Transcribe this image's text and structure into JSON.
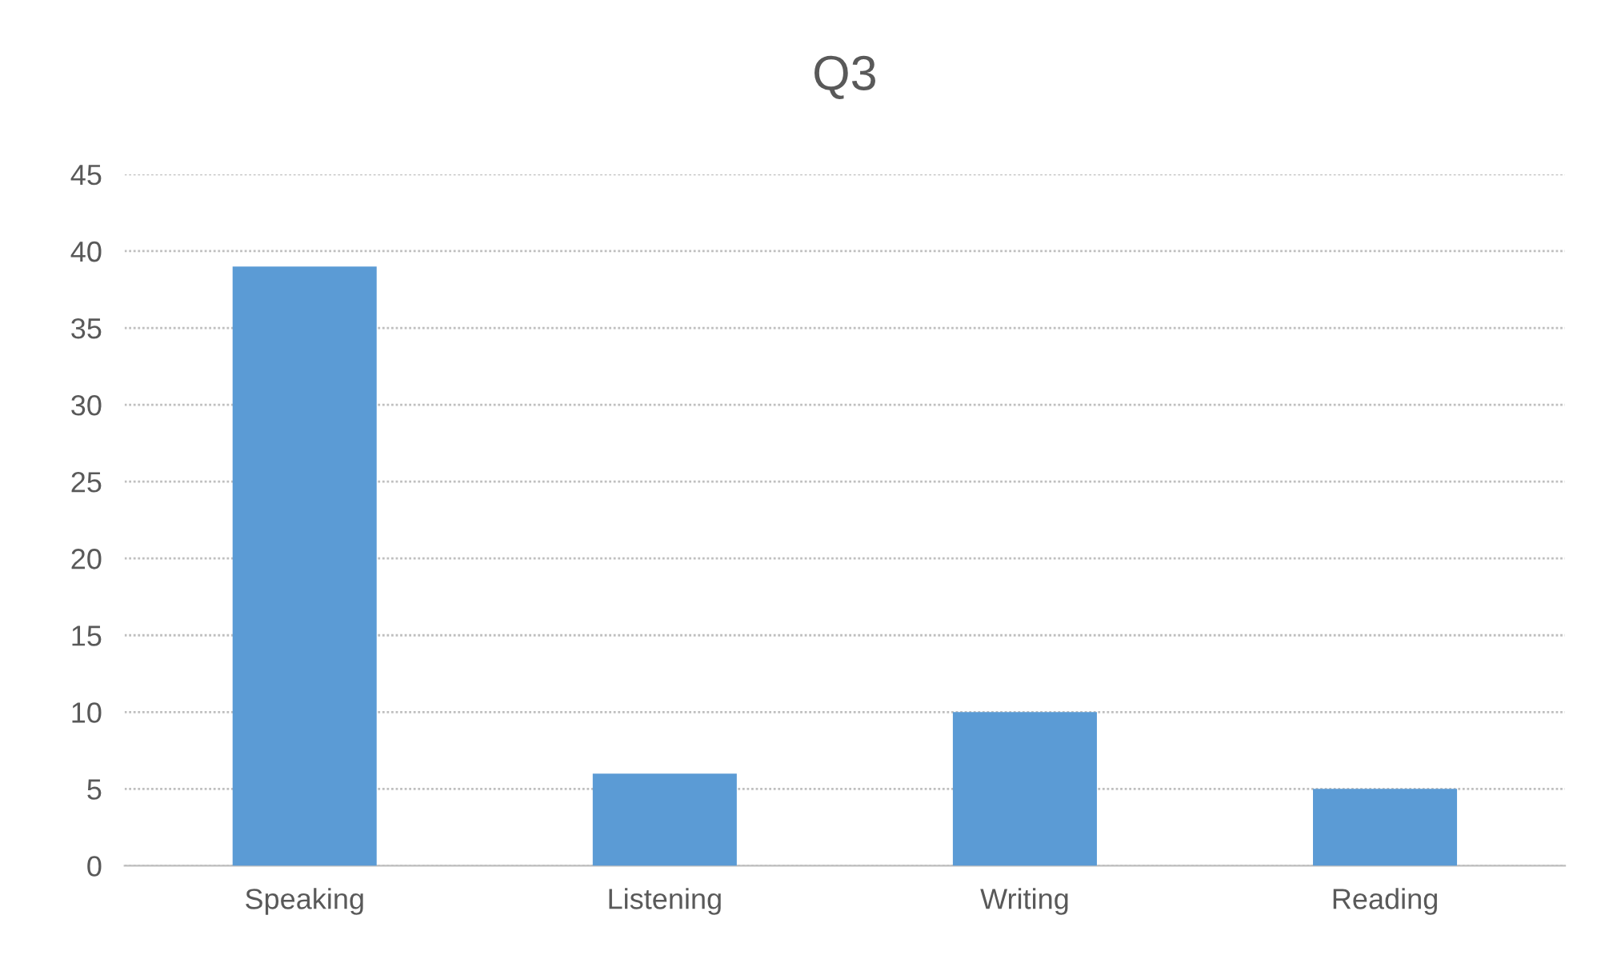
{
  "chart_data": {
    "type": "bar",
    "title": "Q3",
    "categories": [
      "Speaking",
      "Listening",
      "Writing",
      "Reading"
    ],
    "values": [
      39,
      6,
      10,
      5
    ],
    "color": "#5b9bd5",
    "ylim": [
      0,
      45
    ],
    "yticks": [
      0,
      5,
      10,
      15,
      20,
      25,
      30,
      35,
      40,
      45
    ],
    "grid": "y"
  }
}
